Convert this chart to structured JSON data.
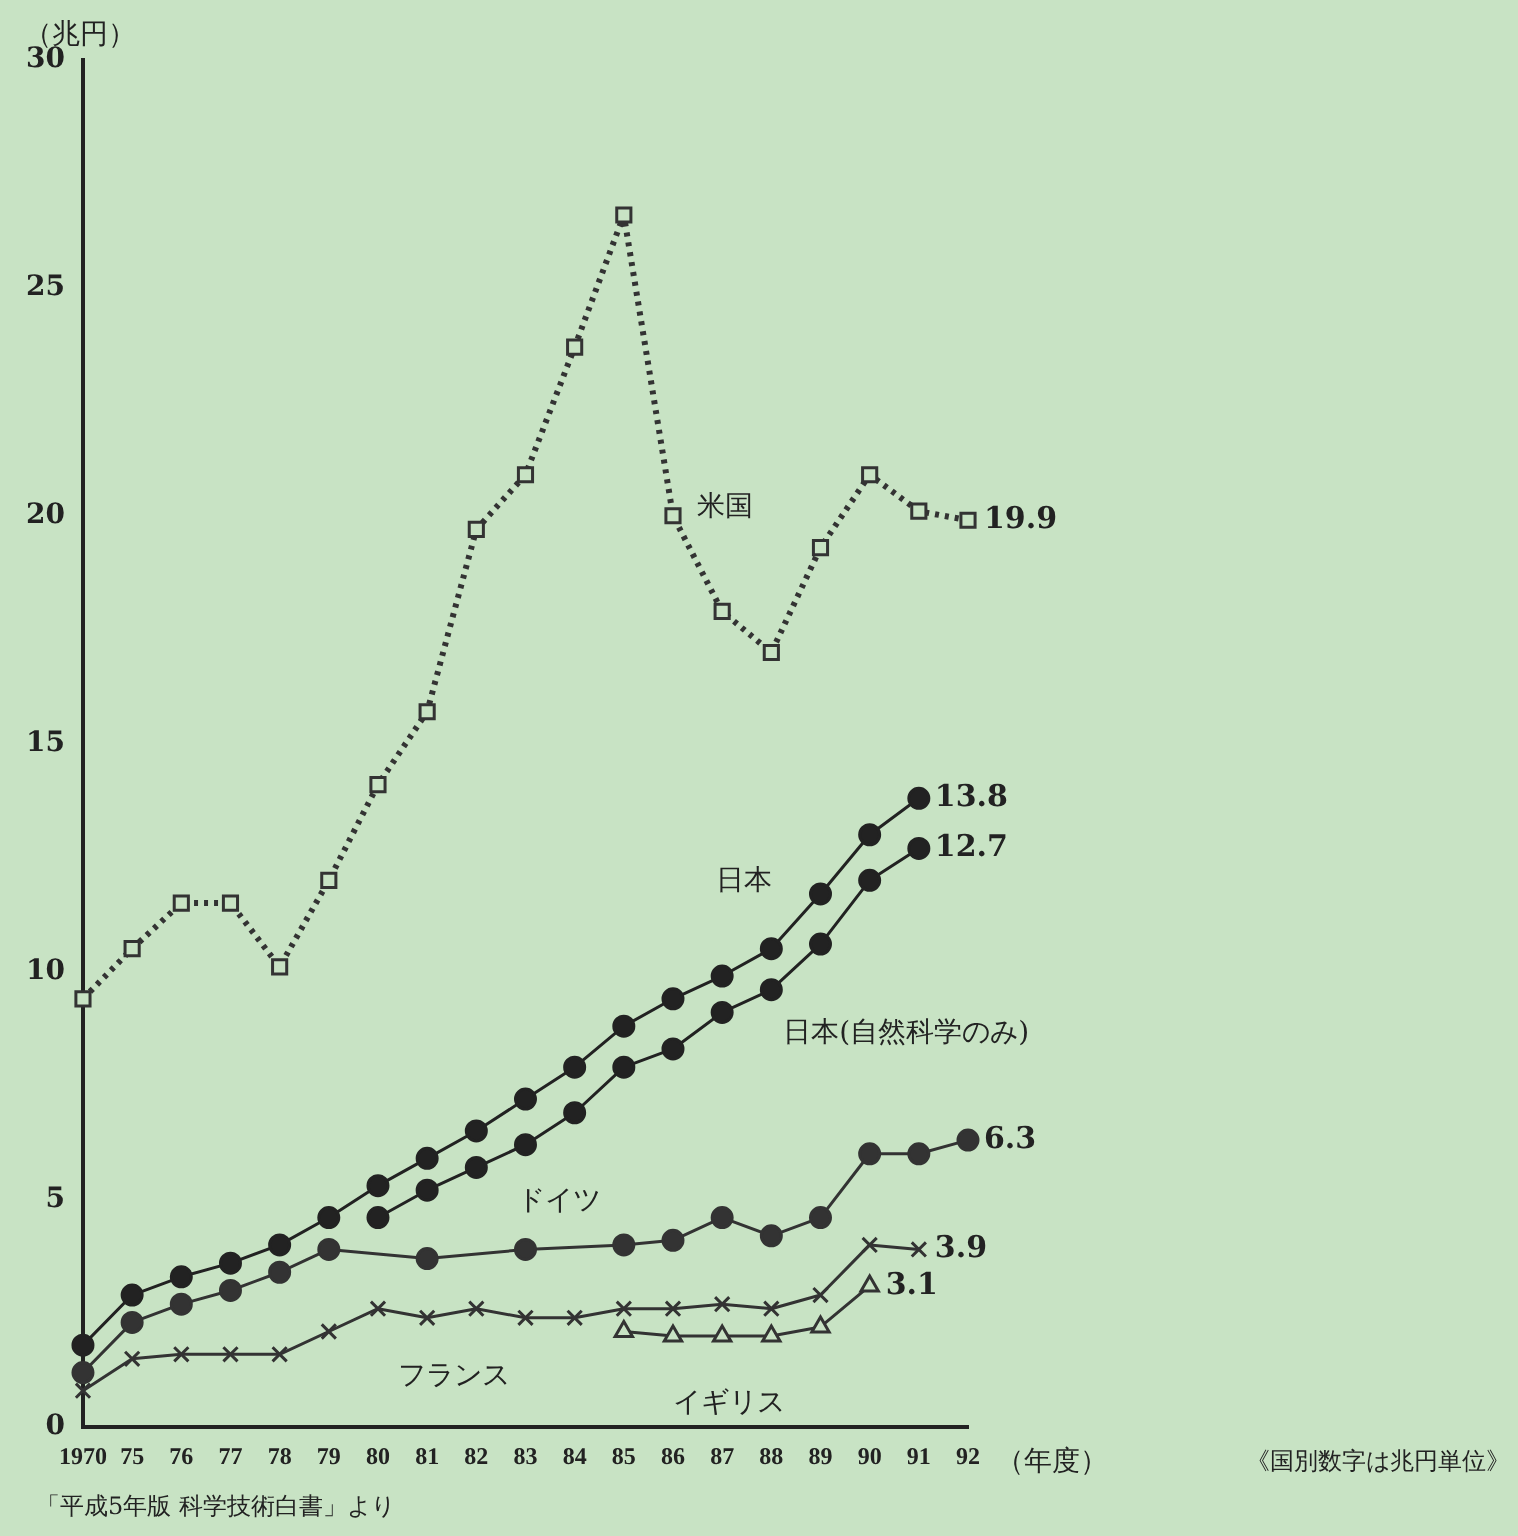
{
  "chart_data": {
    "type": "line",
    "ylabel": "（兆円）",
    "xlabel": "（年度）",
    "categories": [
      "1970",
      "75",
      "76",
      "77",
      "78",
      "79",
      "80",
      "81",
      "82",
      "83",
      "84",
      "85",
      "86",
      "87",
      "88",
      "89",
      "90",
      "91",
      "92"
    ],
    "ylim": [
      0,
      30
    ],
    "yticks": [
      0,
      5,
      10,
      15,
      20,
      25,
      30
    ],
    "grid": false,
    "legend": false,
    "series": [
      {
        "name": "米国",
        "color": "#333333",
        "marker": "square",
        "line_style": "dotted",
        "values": [
          9.4,
          10.5,
          11.5,
          11.5,
          10.1,
          12.0,
          14.1,
          15.7,
          19.7,
          20.9,
          23.7,
          26.6,
          20.0,
          17.9,
          17.0,
          19.3,
          20.9,
          20.1,
          19.9
        ],
        "value_labels": [
          null,
          null,
          null,
          null,
          null,
          null,
          null,
          null,
          null,
          null,
          null,
          null,
          null,
          null,
          null,
          null,
          null,
          null,
          "19.9"
        ]
      },
      {
        "name": "日本",
        "color": "#222222",
        "marker": "circle",
        "line_style": "solid",
        "values": [
          1.8,
          2.9,
          3.3,
          3.6,
          4.0,
          4.6,
          5.3,
          5.9,
          6.5,
          7.2,
          7.9,
          8.8,
          9.4,
          9.9,
          10.5,
          11.7,
          13.0,
          13.8,
          null
        ],
        "value_labels": [
          null,
          null,
          null,
          null,
          null,
          null,
          null,
          null,
          null,
          null,
          null,
          null,
          null,
          null,
          null,
          null,
          null,
          "13.8",
          null
        ]
      },
      {
        "name": "日本(自然科学のみ)",
        "color": "#222222",
        "marker": "circle",
        "line_style": "solid",
        "values": [
          null,
          null,
          null,
          null,
          null,
          null,
          4.6,
          5.2,
          5.7,
          6.2,
          6.9,
          7.9,
          8.3,
          9.1,
          9.6,
          10.6,
          12.0,
          12.7,
          null
        ],
        "value_labels": [
          null,
          null,
          null,
          null,
          null,
          null,
          null,
          null,
          null,
          null,
          null,
          null,
          null,
          null,
          null,
          null,
          null,
          "12.7",
          null
        ]
      },
      {
        "name": "ドイツ",
        "color": "#333333",
        "marker": "circle",
        "line_style": "solid",
        "values": [
          1.2,
          2.3,
          2.7,
          3.0,
          3.4,
          3.9,
          null,
          3.7,
          null,
          3.9,
          null,
          4.0,
          4.1,
          4.6,
          4.2,
          4.6,
          6.0,
          6.0,
          6.3
        ],
        "value_labels": [
          null,
          null,
          null,
          null,
          null,
          null,
          null,
          null,
          null,
          null,
          null,
          null,
          null,
          null,
          null,
          null,
          null,
          null,
          "6.3"
        ]
      },
      {
        "name": "フランス",
        "color": "#333333",
        "marker": "cross",
        "line_style": "solid",
        "values": [
          0.8,
          1.5,
          1.6,
          1.6,
          1.6,
          2.1,
          2.6,
          2.4,
          2.6,
          2.4,
          2.4,
          2.6,
          2.6,
          2.7,
          2.6,
          2.9,
          4.0,
          3.9,
          null
        ],
        "value_labels": [
          null,
          null,
          null,
          null,
          null,
          null,
          null,
          null,
          null,
          null,
          null,
          null,
          null,
          null,
          null,
          null,
          null,
          "3.9",
          null
        ]
      },
      {
        "name": "イギリス",
        "color": "#333333",
        "marker": "triangle",
        "line_style": "solid",
        "values": [
          null,
          null,
          null,
          null,
          null,
          null,
          null,
          null,
          null,
          null,
          null,
          2.1,
          2.0,
          2.0,
          2.0,
          2.2,
          3.1,
          null,
          null
        ],
        "value_labels": [
          null,
          null,
          null,
          null,
          null,
          null,
          null,
          null,
          null,
          null,
          null,
          null,
          null,
          null,
          null,
          null,
          "3.1",
          null,
          null
        ]
      }
    ],
    "annotations": [
      "「平成5年版 科学技術白書」より",
      "《国別数字は兆円単位》"
    ]
  }
}
